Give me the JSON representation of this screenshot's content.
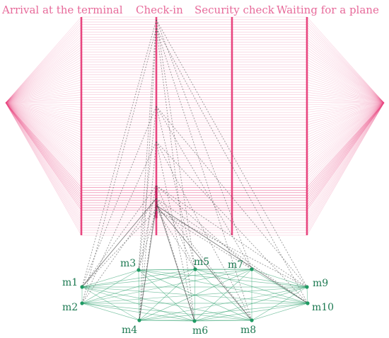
{
  "stages": [
    {
      "id": "s1",
      "label": "Arrival at the terminal"
    },
    {
      "id": "s2",
      "label": "Check-in"
    },
    {
      "id": "s3",
      "label": "Security check"
    },
    {
      "id": "s4",
      "label": "Waiting for a plane"
    }
  ],
  "nodes": [
    {
      "id": "m1",
      "label": "m1"
    },
    {
      "id": "m2",
      "label": "m2"
    },
    {
      "id": "m3",
      "label": "m3"
    },
    {
      "id": "m4",
      "label": "m4"
    },
    {
      "id": "m5",
      "label": "m5"
    },
    {
      "id": "m6",
      "label": "m6"
    },
    {
      "id": "m7",
      "label": "m7"
    },
    {
      "id": "m8",
      "label": "m8"
    },
    {
      "id": "m9",
      "label": "m9"
    },
    {
      "id": "m10",
      "label": "m10"
    }
  ],
  "colors": {
    "flow": "#e8457f",
    "flow_light": "#f4a3c0",
    "stage_label": "#e76a9a",
    "network": "#1f9a63",
    "network_label": "#1d7a52",
    "link": "#555555"
  }
}
